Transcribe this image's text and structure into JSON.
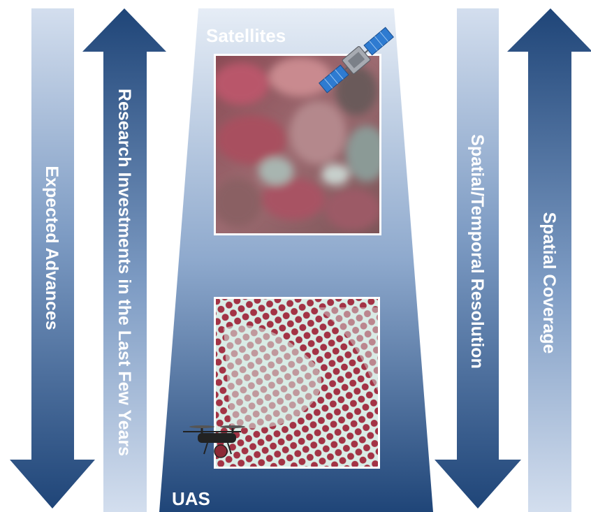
{
  "arrows": {
    "expected_advances": {
      "label": "Expected Advances",
      "direction": "down"
    },
    "research_investments": {
      "label": "Research Investments in the Last Few Years",
      "direction": "up"
    },
    "spatial_temporal_resolution": {
      "label": "Spatial/Temporal Resolution",
      "direction": "down"
    },
    "spatial_coverage": {
      "label": "Spatial Coverage",
      "direction": "up"
    }
  },
  "platform_panel": {
    "top_label": "Satellites",
    "bottom_label": "UAS",
    "top_icon": "satellite-icon",
    "bottom_icon": "drone-icon"
  },
  "colors": {
    "dark_blue": "#1f4578",
    "light_blue": "#c7d5e8",
    "crop_red": "#a33345",
    "soil_light": "#d9ece6"
  }
}
